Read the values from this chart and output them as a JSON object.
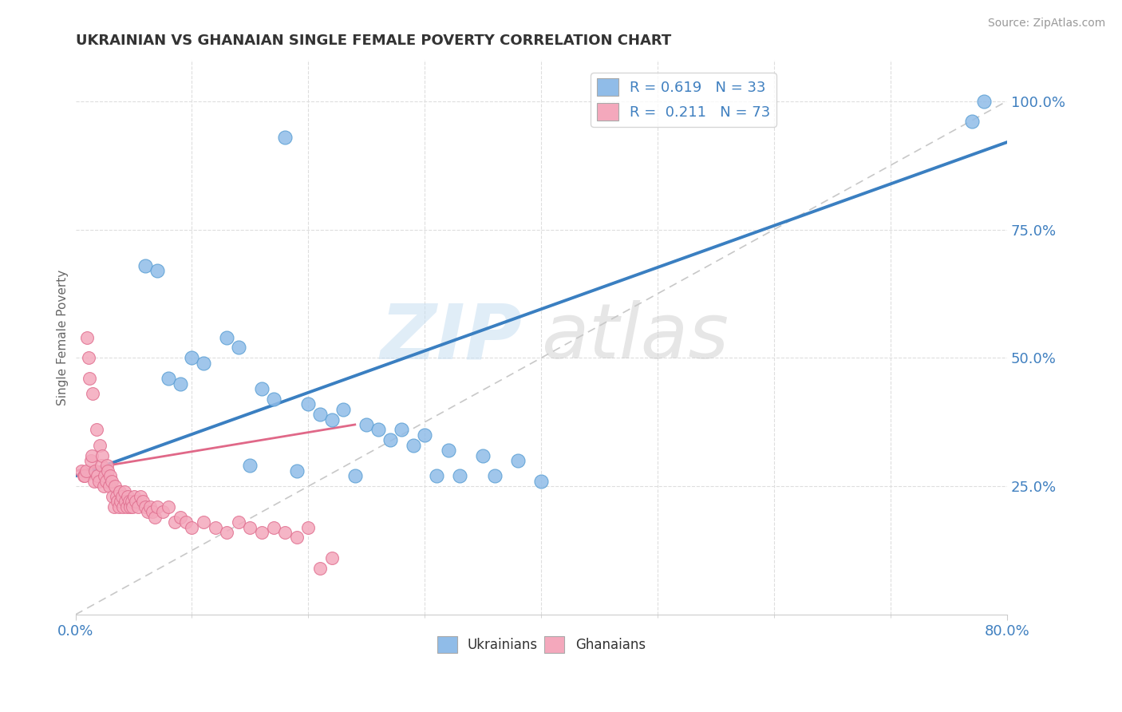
{
  "title": "UKRAINIAN VS GHANAIAN SINGLE FEMALE POVERTY CORRELATION CHART",
  "source": "Source: ZipAtlas.com",
  "ylabel": "Single Female Poverty",
  "ylabel_right_ticks": [
    "25.0%",
    "50.0%",
    "75.0%",
    "100.0%"
  ],
  "ylabel_right_vals": [
    0.25,
    0.5,
    0.75,
    1.0
  ],
  "blue_color": "#90bce8",
  "blue_edge": "#5a9fd4",
  "pink_color": "#f4a8bc",
  "pink_edge": "#e07090",
  "blue_line_color": "#3a7fc1",
  "pink_line_color": "#e06888",
  "ref_line_color": "#c8c8c8",
  "xlim": [
    0.0,
    0.8
  ],
  "ylim": [
    0.0,
    1.08
  ],
  "blue_scatter_x": [
    0.18,
    0.06,
    0.07,
    0.13,
    0.14,
    0.1,
    0.11,
    0.08,
    0.09,
    0.16,
    0.17,
    0.2,
    0.23,
    0.21,
    0.22,
    0.25,
    0.26,
    0.28,
    0.3,
    0.27,
    0.29,
    0.32,
    0.35,
    0.38,
    0.15,
    0.19,
    0.24,
    0.31,
    0.33,
    0.36,
    0.4,
    0.78,
    0.77
  ],
  "blue_scatter_y": [
    0.93,
    0.68,
    0.67,
    0.54,
    0.52,
    0.5,
    0.49,
    0.46,
    0.45,
    0.44,
    0.42,
    0.41,
    0.4,
    0.39,
    0.38,
    0.37,
    0.36,
    0.36,
    0.35,
    0.34,
    0.33,
    0.32,
    0.31,
    0.3,
    0.29,
    0.28,
    0.27,
    0.27,
    0.27,
    0.27,
    0.26,
    1.0,
    0.96
  ],
  "pink_scatter_x": [
    0.005,
    0.007,
    0.008,
    0.009,
    0.01,
    0.011,
    0.012,
    0.013,
    0.014,
    0.015,
    0.016,
    0.017,
    0.018,
    0.019,
    0.02,
    0.021,
    0.022,
    0.023,
    0.024,
    0.025,
    0.026,
    0.027,
    0.028,
    0.029,
    0.03,
    0.031,
    0.032,
    0.033,
    0.034,
    0.035,
    0.036,
    0.037,
    0.038,
    0.039,
    0.04,
    0.041,
    0.042,
    0.043,
    0.044,
    0.045,
    0.046,
    0.047,
    0.048,
    0.049,
    0.05,
    0.052,
    0.054,
    0.056,
    0.058,
    0.06,
    0.062,
    0.064,
    0.066,
    0.068,
    0.07,
    0.075,
    0.08,
    0.085,
    0.09,
    0.095,
    0.1,
    0.11,
    0.12,
    0.13,
    0.14,
    0.15,
    0.16,
    0.17,
    0.18,
    0.19,
    0.2,
    0.21,
    0.22
  ],
  "pink_scatter_y": [
    0.28,
    0.27,
    0.27,
    0.28,
    0.54,
    0.5,
    0.46,
    0.3,
    0.31,
    0.43,
    0.26,
    0.28,
    0.36,
    0.27,
    0.26,
    0.33,
    0.29,
    0.31,
    0.25,
    0.27,
    0.26,
    0.29,
    0.28,
    0.25,
    0.27,
    0.26,
    0.23,
    0.21,
    0.25,
    0.23,
    0.22,
    0.21,
    0.24,
    0.22,
    0.23,
    0.21,
    0.24,
    0.22,
    0.21,
    0.23,
    0.22,
    0.21,
    0.22,
    0.21,
    0.23,
    0.22,
    0.21,
    0.23,
    0.22,
    0.21,
    0.2,
    0.21,
    0.2,
    0.19,
    0.21,
    0.2,
    0.21,
    0.18,
    0.19,
    0.18,
    0.17,
    0.18,
    0.17,
    0.16,
    0.18,
    0.17,
    0.16,
    0.17,
    0.16,
    0.15,
    0.17,
    0.09,
    0.11
  ],
  "blue_line_x0": 0.0,
  "blue_line_x1": 0.8,
  "blue_line_y0": 0.27,
  "blue_line_y1": 0.92,
  "pink_line_x0": 0.0,
  "pink_line_x1": 0.24,
  "pink_line_y0": 0.28,
  "pink_line_y1": 0.37
}
